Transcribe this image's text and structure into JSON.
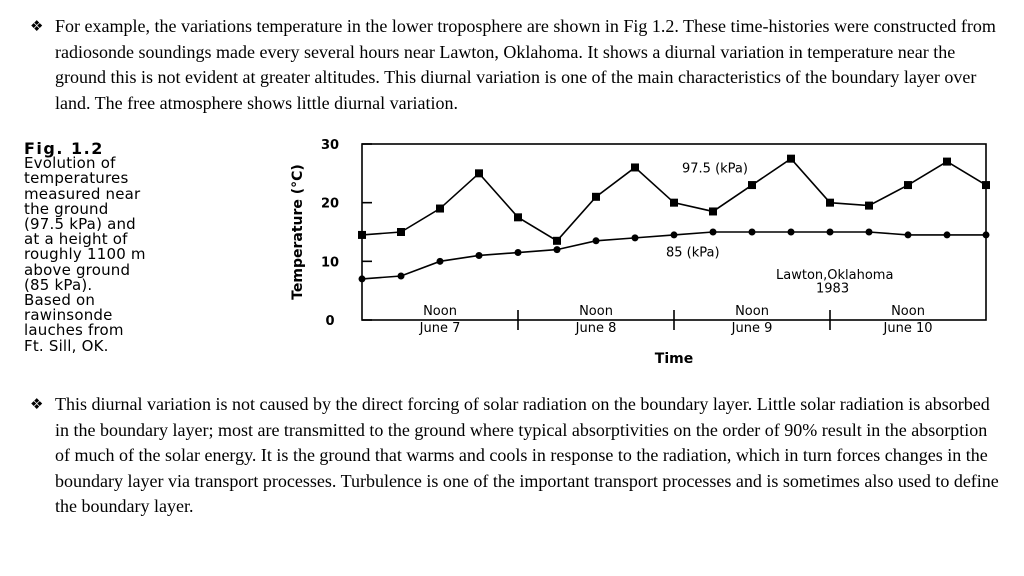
{
  "paragraphs": [
    {
      "bullet": "❖",
      "text": "For example, the variations temperature  in the lower troposphere are shown in Fig 1.2. These time-histories were constructed from radiosonde soundings made every several hours near Lawton, Oklahoma.  It shows a diurnal variation in temperature near the ground this is not evident at greater altitudes. This diurnal variation is one of the main characteristics of the boundary layer over land. The free atmosphere shows little diurnal variation."
    },
    {
      "bullet": "❖",
      "text": "This diurnal variation is not caused by the direct forcing of solar radiation on the boundary layer. Little solar radiation is absorbed in the boundary layer; most are transmitted to the ground where typical absorptivities on the order of 90% result in the absorption of much of the solar energy. It is the ground that warms and cools in response to the radiation, which in turn forces changes in the boundary layer via transport processes. Turbulence is one of the important transport processes and is sometimes also used to define the boundary layer."
    }
  ],
  "figure_caption": {
    "label": "Fig.   1.2",
    "text": "Evolution of\ntemperatures\nmeasured near\nthe ground\n(97.5 kPa) and\nat a height of\nroughly 1100 m\nabove ground\n(85 kPa).\nBased on\nrawinsonde\nlauches from\nFt. Sill, OK."
  },
  "chart_data": {
    "type": "line",
    "ylabel": "Temperature (°C)",
    "xlabel": "Time",
    "ylim": [
      0,
      30
    ],
    "yticks": [
      0,
      10,
      20,
      30
    ],
    "xlim": [
      0,
      4
    ],
    "day_labels": [
      {
        "noon": "Noon",
        "day": "June 7"
      },
      {
        "noon": "Noon",
        "day": "June 8"
      },
      {
        "noon": "Noon",
        "day": "June 9"
      },
      {
        "noon": "Noon",
        "day": "June 10"
      }
    ],
    "annotation": [
      "Lawton,Oklahoma",
      "1983"
    ],
    "series": [
      {
        "name": "97.5 (kPa)",
        "x": [
          0,
          0.25,
          0.5,
          0.75,
          1.0,
          1.25,
          1.5,
          1.75,
          2.0,
          2.25,
          2.5,
          2.75,
          3.0,
          3.25,
          3.5,
          3.75,
          4.0
        ],
        "y": [
          14.5,
          15,
          19,
          25,
          17.5,
          13.5,
          21,
          26,
          20,
          18.5,
          23,
          27.5,
          20,
          19.5,
          23,
          27,
          23
        ]
      },
      {
        "name": "85 (kPa)",
        "x": [
          0,
          0.25,
          0.5,
          0.75,
          1.0,
          1.25,
          1.5,
          1.75,
          2.0,
          2.25,
          2.5,
          2.75,
          3.0,
          3.25,
          3.5,
          3.75,
          4.0
        ],
        "y": [
          7,
          7.5,
          10,
          11,
          11.5,
          12,
          13.5,
          14,
          14.5,
          15,
          15,
          15,
          15,
          15,
          14.5,
          14.5,
          14.5
        ]
      }
    ]
  }
}
